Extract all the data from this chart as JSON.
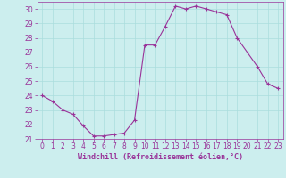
{
  "x": [
    0,
    1,
    2,
    3,
    4,
    5,
    6,
    7,
    8,
    9,
    10,
    11,
    12,
    13,
    14,
    15,
    16,
    17,
    18,
    19,
    20,
    21,
    22,
    23
  ],
  "y": [
    24.0,
    23.6,
    23.0,
    22.7,
    21.9,
    21.2,
    21.2,
    21.3,
    21.4,
    22.3,
    27.5,
    27.5,
    28.8,
    30.2,
    30.0,
    30.2,
    30.0,
    29.8,
    29.6,
    28.0,
    27.0,
    26.0,
    24.8,
    24.5
  ],
  "line_color": "#993399",
  "marker": "+",
  "background_color": "#cceeee",
  "grid_color": "#aadddd",
  "xlabel": "Windchill (Refroidissement éolien,°C)",
  "xlabel_color": "#993399",
  "tick_color": "#993399",
  "ylim": [
    21,
    30.5
  ],
  "xlim": [
    -0.5,
    23.5
  ],
  "yticks": [
    21,
    22,
    23,
    24,
    25,
    26,
    27,
    28,
    29,
    30
  ],
  "xticks": [
    0,
    1,
    2,
    3,
    4,
    5,
    6,
    7,
    8,
    9,
    10,
    11,
    12,
    13,
    14,
    15,
    16,
    17,
    18,
    19,
    20,
    21,
    22,
    23
  ],
  "tick_fontsize": 5.5,
  "xlabel_fontsize": 6.0,
  "linewidth": 0.8,
  "markersize": 3.5,
  "markeredgewidth": 0.8
}
